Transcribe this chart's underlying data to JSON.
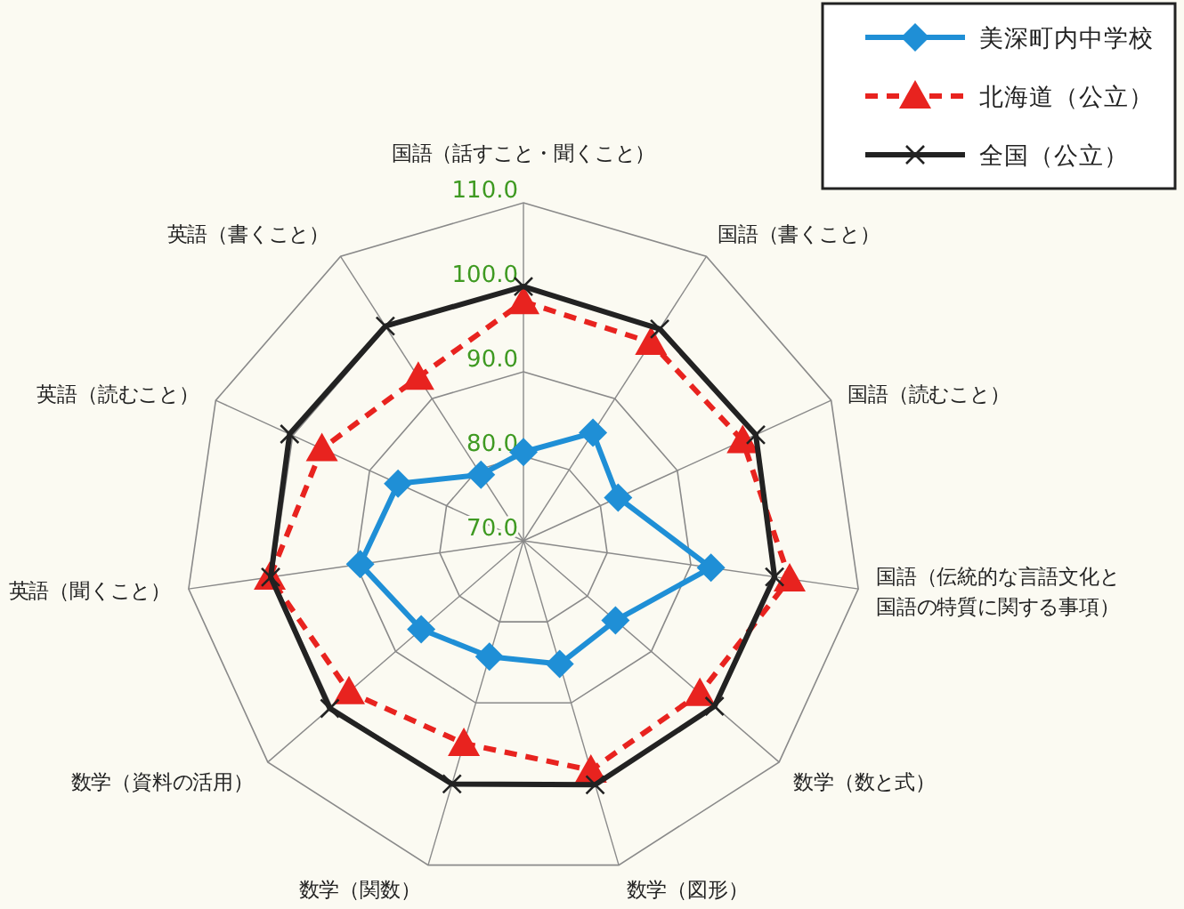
{
  "chart_data": {
    "type": "radar",
    "categories": [
      "国語（話すこと・聞くこと）",
      "国語（書くこと）",
      "国語（読むこと）",
      "国語（伝統的な言語文化と国語の特質に関する事項）",
      "数学（数と式）",
      "数学（図形）",
      "数学（関数）",
      "数学（資料の活用）",
      "英語（聞くこと）",
      "英語（読むこと）",
      "英語（書くこと）"
    ],
    "series": [
      {
        "name": "美深町内中学校",
        "color": "#1f8fd6",
        "marker": "diamond",
        "line_style": "solid",
        "values": [
          80.5,
          85.2,
          82.3,
          92.4,
          84.4,
          85.2,
          84.3,
          86.0,
          89.5,
          86.3,
          79.3
        ]
      },
      {
        "name": "北海道（公立）",
        "color": "#e8231f",
        "marker": "triangle",
        "line_style": "dashed",
        "values": [
          98.3,
          97.9,
          98.5,
          101.8,
          97.6,
          98.3,
          95.0,
          97.3,
          100.3,
          96.2,
          93.0
        ]
      },
      {
        "name": "全国（公立）",
        "color": "#222222",
        "marker": "cross",
        "line_style": "solid",
        "values": [
          100.1,
          99.8,
          100.2,
          100.0,
          99.9,
          100.1,
          100.0,
          100.3,
          100.2,
          100.4,
          100.2
        ]
      }
    ],
    "ylim": [
      70,
      110
    ],
    "yticks": [
      {
        "value": 70,
        "label": "70.0"
      },
      {
        "value": 80,
        "label": "80.0"
      },
      {
        "value": 90,
        "label": "90.0"
      },
      {
        "value": 100,
        "label": "100.0"
      },
      {
        "value": 110,
        "label": "110.0"
      }
    ],
    "grid": true,
    "legend": "top right"
  }
}
